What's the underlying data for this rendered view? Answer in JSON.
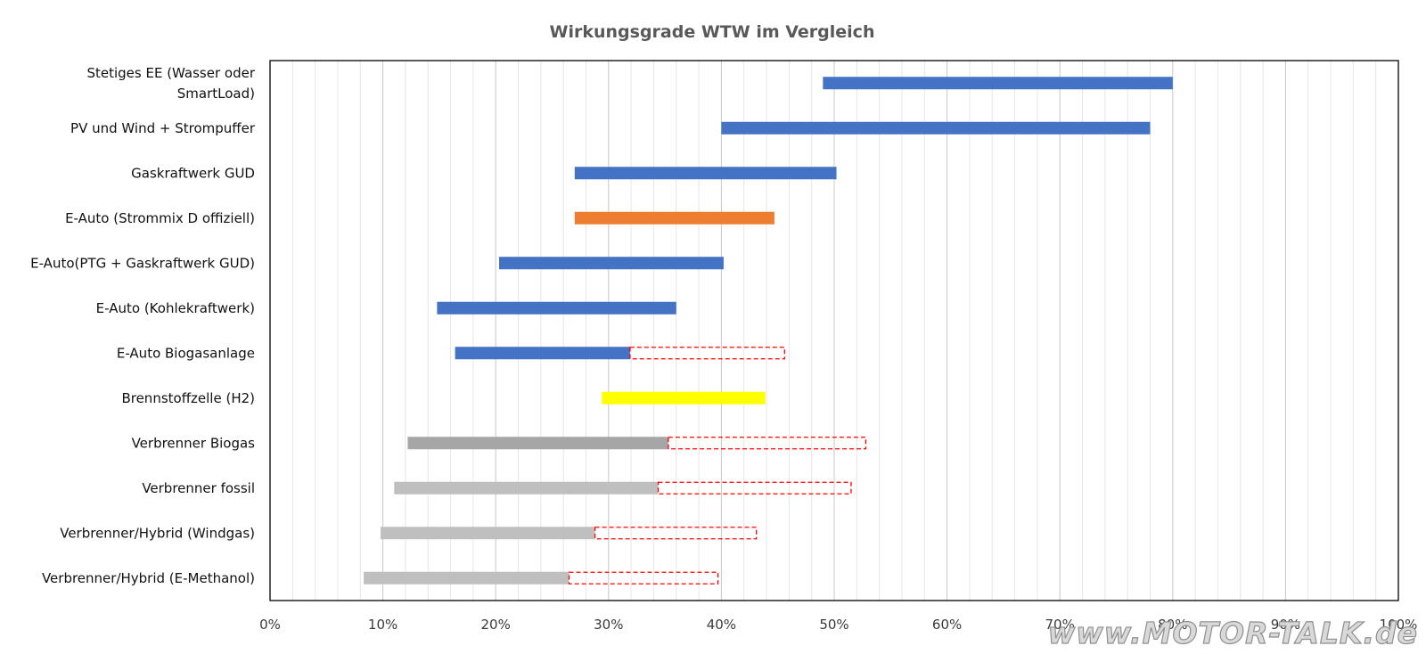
{
  "chart_data": {
    "type": "bar",
    "orientation": "horizontal",
    "title": "Wirkungsgrade WTW im Vergleich",
    "xlim": [
      0,
      100
    ],
    "x_ticks": [
      "0%",
      "10%",
      "20%",
      "30%",
      "40%",
      "50%",
      "60%",
      "70%",
      "80%",
      "90%",
      "100%"
    ],
    "grid": true,
    "legend": "none",
    "categories": [
      {
        "label": [
          "Stetiges EE (Wasser oder",
          "SmartLoad)"
        ],
        "start": 49,
        "end": 80,
        "color": "#4472c4"
      },
      {
        "label": [
          "PV und Wind + Strompuffer"
        ],
        "start": 40,
        "end": 78,
        "color": "#4472c4"
      },
      {
        "label": [
          "Gaskraftwerk GUD"
        ],
        "start": 27,
        "end": 50.2,
        "color": "#4472c4"
      },
      {
        "label": [
          "E-Auto (Strommix D offiziell)"
        ],
        "start": 27,
        "end": 44.7,
        "color": "#ed7d31"
      },
      {
        "label": [
          "E-Auto(PTG + Gaskraftwerk GUD)"
        ],
        "start": 20.3,
        "end": 40.2,
        "color": "#4472c4"
      },
      {
        "label": [
          "E-Auto (Kohlekraftwerk)"
        ],
        "start": 14.8,
        "end": 36,
        "color": "#4472c4"
      },
      {
        "label": [
          "E-Auto Biogasanlage"
        ],
        "start": 16.4,
        "end": 31.9,
        "color": "#4472c4",
        "ext_end": 45.6
      },
      {
        "label": [
          "Brennstoffzelle (H2)"
        ],
        "start": 29.4,
        "end": 43.9,
        "color": "#ffff00"
      },
      {
        "label": [
          "Verbrenner Biogas"
        ],
        "start": 12.2,
        "end": 35.3,
        "color": "#a6a6a6",
        "ext_end": 52.8
      },
      {
        "label": [
          "Verbrenner fossil"
        ],
        "start": 11,
        "end": 34.4,
        "color": "#bfbfbf",
        "ext_end": 51.5
      },
      {
        "label": [
          "Verbrenner/Hybrid (Windgas)"
        ],
        "start": 9.8,
        "end": 28.8,
        "color": "#bfbfbf",
        "ext_end": 43.1
      },
      {
        "label": [
          "Verbrenner/Hybrid (E-Methanol)"
        ],
        "start": 8.3,
        "end": 26.5,
        "color": "#bfbfbf",
        "ext_end": 39.7
      }
    ],
    "extension_style": {
      "stroke": "#ff0000",
      "dash": "dashed"
    }
  },
  "watermark": "www.MOTOR-TALK.de"
}
